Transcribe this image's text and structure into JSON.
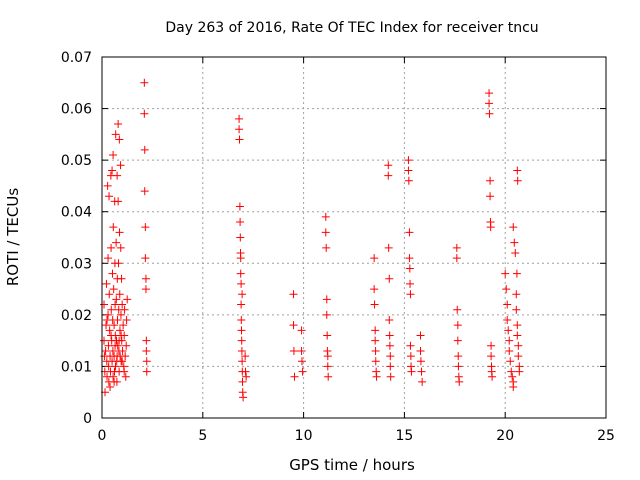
{
  "chart_data": {
    "type": "scatter",
    "title": "Day 263 of 2016, Rate Of TEC Index for receiver tncu",
    "xlabel": "GPS time / hours",
    "ylabel": "ROTI / TECUs",
    "xlim": [
      0,
      25
    ],
    "ylim": [
      0,
      0.07
    ],
    "xticks": [
      "0",
      "5",
      "10",
      "15",
      "20",
      "25"
    ],
    "yticks": [
      "0",
      "0.01",
      "0.02",
      "0.03",
      "0.04",
      "0.05",
      "0.06",
      "0.07"
    ],
    "grid": true,
    "marker": "+",
    "color": "#ff0000",
    "series": [
      {
        "name": "ROTI",
        "points": [
          [
            0.1,
            0.022
          ],
          [
            0.1,
            0.015
          ],
          [
            0.12,
            0.012
          ],
          [
            0.14,
            0.009
          ],
          [
            0.15,
            0.005
          ],
          [
            0.18,
            0.013
          ],
          [
            0.2,
            0.018
          ],
          [
            0.22,
            0.026
          ],
          [
            0.24,
            0.011
          ],
          [
            0.25,
            0.008
          ],
          [
            0.28,
            0.045
          ],
          [
            0.3,
            0.031
          ],
          [
            0.3,
            0.02
          ],
          [
            0.32,
            0.014
          ],
          [
            0.33,
            0.01
          ],
          [
            0.34,
            0.007
          ],
          [
            0.36,
            0.024
          ],
          [
            0.38,
            0.017
          ],
          [
            0.4,
            0.012
          ],
          [
            0.42,
            0.009
          ],
          [
            0.44,
            0.047
          ],
          [
            0.45,
            0.033
          ],
          [
            0.46,
            0.021
          ],
          [
            0.48,
            0.015
          ],
          [
            0.5,
            0.011
          ],
          [
            0.5,
            0.048
          ],
          [
            0.52,
            0.028
          ],
          [
            0.53,
            0.019
          ],
          [
            0.54,
            0.013
          ],
          [
            0.55,
            0.008
          ],
          [
            0.56,
            0.037
          ],
          [
            0.58,
            0.025
          ],
          [
            0.6,
            0.018
          ],
          [
            0.6,
            0.012
          ],
          [
            0.62,
            0.009
          ],
          [
            0.63,
            0.042
          ],
          [
            0.64,
            0.03
          ],
          [
            0.65,
            0.022
          ],
          [
            0.66,
            0.016
          ],
          [
            0.67,
            0.01
          ],
          [
            0.68,
            0.055
          ],
          [
            0.7,
            0.034
          ],
          [
            0.71,
            0.023
          ],
          [
            0.72,
            0.015
          ],
          [
            0.73,
            0.011
          ],
          [
            0.74,
            0.007
          ],
          [
            0.75,
            0.047
          ],
          [
            0.76,
            0.027
          ],
          [
            0.77,
            0.019
          ],
          [
            0.78,
            0.014
          ],
          [
            0.8,
            0.057
          ],
          [
            0.8,
            0.042
          ],
          [
            0.82,
            0.03
          ],
          [
            0.83,
            0.021
          ],
          [
            0.84,
            0.013
          ],
          [
            0.85,
            0.009
          ],
          [
            0.86,
            0.054
          ],
          [
            0.87,
            0.036
          ],
          [
            0.88,
            0.024
          ],
          [
            0.89,
            0.017
          ],
          [
            0.9,
            0.012
          ],
          [
            0.92,
            0.049
          ],
          [
            0.93,
            0.033
          ],
          [
            0.94,
            0.02
          ],
          [
            0.95,
            0.011
          ],
          [
            0.97,
            0.027
          ],
          [
            0.98,
            0.015
          ],
          [
            1.0,
            0.022
          ],
          [
            1.02,
            0.013
          ],
          [
            1.05,
            0.018
          ],
          [
            1.08,
            0.01
          ],
          [
            1.1,
            0.016
          ],
          [
            1.12,
            0.021
          ],
          [
            1.15,
            0.012
          ],
          [
            1.18,
            0.008
          ],
          [
            1.2,
            0.014
          ],
          [
            1.22,
            0.019
          ],
          [
            1.25,
            0.023
          ],
          [
            0.35,
            0.043
          ],
          [
            0.55,
            0.051
          ],
          [
            0.45,
            0.016
          ],
          [
            0.65,
            0.014
          ],
          [
            0.85,
            0.015
          ],
          [
            1.0,
            0.011
          ],
          [
            0.25,
            0.019
          ],
          [
            0.75,
            0.012
          ],
          [
            0.95,
            0.016
          ],
          [
            1.1,
            0.009
          ],
          [
            0.6,
            0.007
          ],
          [
            0.4,
            0.006
          ],
          [
            2.1,
            0.065
          ],
          [
            2.1,
            0.059
          ],
          [
            2.12,
            0.052
          ],
          [
            2.12,
            0.044
          ],
          [
            2.15,
            0.037
          ],
          [
            2.15,
            0.031
          ],
          [
            2.18,
            0.027
          ],
          [
            2.18,
            0.025
          ],
          [
            2.2,
            0.015
          ],
          [
            2.2,
            0.013
          ],
          [
            2.22,
            0.011
          ],
          [
            2.22,
            0.009
          ],
          [
            6.8,
            0.058
          ],
          [
            6.8,
            0.056
          ],
          [
            6.82,
            0.054
          ],
          [
            6.84,
            0.041
          ],
          [
            6.85,
            0.038
          ],
          [
            6.86,
            0.035
          ],
          [
            6.87,
            0.032
          ],
          [
            6.88,
            0.028
          ],
          [
            6.9,
            0.026
          ],
          [
            6.9,
            0.022
          ],
          [
            6.91,
            0.019
          ],
          [
            6.92,
            0.017
          ],
          [
            6.93,
            0.015
          ],
          [
            6.94,
            0.013
          ],
          [
            6.95,
            0.011
          ],
          [
            6.96,
            0.009
          ],
          [
            6.97,
            0.007
          ],
          [
            6.98,
            0.005
          ],
          [
            7.0,
            0.004
          ],
          [
            7.1,
            0.012
          ],
          [
            7.12,
            0.009
          ],
          [
            7.15,
            0.008
          ],
          [
            6.95,
            0.024
          ],
          [
            6.88,
            0.031
          ],
          [
            9.5,
            0.024
          ],
          [
            9.5,
            0.018
          ],
          [
            9.52,
            0.013
          ],
          [
            9.55,
            0.008
          ],
          [
            9.9,
            0.017
          ],
          [
            9.9,
            0.013
          ],
          [
            9.92,
            0.011
          ],
          [
            9.95,
            0.009
          ],
          [
            11.1,
            0.039
          ],
          [
            11.1,
            0.036
          ],
          [
            11.12,
            0.033
          ],
          [
            11.15,
            0.023
          ],
          [
            11.15,
            0.02
          ],
          [
            11.17,
            0.016
          ],
          [
            11.18,
            0.013
          ],
          [
            11.2,
            0.012
          ],
          [
            11.2,
            0.01
          ],
          [
            11.22,
            0.008
          ],
          [
            13.5,
            0.031
          ],
          [
            13.5,
            0.025
          ],
          [
            13.52,
            0.022
          ],
          [
            13.55,
            0.017
          ],
          [
            13.55,
            0.015
          ],
          [
            13.57,
            0.013
          ],
          [
            13.58,
            0.011
          ],
          [
            13.6,
            0.009
          ],
          [
            13.62,
            0.008
          ],
          [
            14.2,
            0.049
          ],
          [
            14.2,
            0.047
          ],
          [
            14.22,
            0.033
          ],
          [
            14.25,
            0.027
          ],
          [
            14.25,
            0.019
          ],
          [
            14.27,
            0.016
          ],
          [
            14.28,
            0.014
          ],
          [
            14.3,
            0.012
          ],
          [
            14.3,
            0.01
          ],
          [
            14.32,
            0.008
          ],
          [
            15.2,
            0.05
          ],
          [
            15.2,
            0.048
          ],
          [
            15.22,
            0.046
          ],
          [
            15.25,
            0.036
          ],
          [
            15.25,
            0.031
          ],
          [
            15.27,
            0.029
          ],
          [
            15.28,
            0.026
          ],
          [
            15.3,
            0.024
          ],
          [
            15.3,
            0.014
          ],
          [
            15.32,
            0.012
          ],
          [
            15.33,
            0.01
          ],
          [
            15.35,
            0.009
          ],
          [
            15.8,
            0.016
          ],
          [
            15.8,
            0.013
          ],
          [
            15.82,
            0.011
          ],
          [
            15.85,
            0.009
          ],
          [
            15.88,
            0.007
          ],
          [
            17.6,
            0.033
          ],
          [
            17.6,
            0.031
          ],
          [
            17.62,
            0.021
          ],
          [
            17.65,
            0.018
          ],
          [
            17.65,
            0.015
          ],
          [
            17.67,
            0.012
          ],
          [
            17.68,
            0.01
          ],
          [
            17.7,
            0.008
          ],
          [
            17.72,
            0.007
          ],
          [
            19.2,
            0.063
          ],
          [
            19.2,
            0.061
          ],
          [
            19.22,
            0.059
          ],
          [
            19.25,
            0.046
          ],
          [
            19.25,
            0.043
          ],
          [
            19.27,
            0.038
          ],
          [
            19.28,
            0.037
          ],
          [
            19.3,
            0.014
          ],
          [
            19.3,
            0.012
          ],
          [
            19.32,
            0.01
          ],
          [
            19.33,
            0.009
          ],
          [
            19.35,
            0.008
          ],
          [
            20.0,
            0.028
          ],
          [
            20.05,
            0.025
          ],
          [
            20.1,
            0.022
          ],
          [
            20.1,
            0.019
          ],
          [
            20.15,
            0.017
          ],
          [
            20.2,
            0.015
          ],
          [
            20.2,
            0.013
          ],
          [
            20.25,
            0.011
          ],
          [
            20.3,
            0.009
          ],
          [
            20.35,
            0.008
          ],
          [
            20.4,
            0.007
          ],
          [
            20.4,
            0.006
          ],
          [
            20.4,
            0.037
          ],
          [
            20.45,
            0.034
          ],
          [
            20.5,
            0.032
          ],
          [
            20.55,
            0.024
          ],
          [
            20.55,
            0.021
          ],
          [
            20.6,
            0.018
          ],
          [
            20.6,
            0.016
          ],
          [
            20.65,
            0.014
          ],
          [
            20.65,
            0.012
          ],
          [
            20.7,
            0.01
          ],
          [
            20.7,
            0.009
          ],
          [
            20.6,
            0.048
          ],
          [
            20.62,
            0.046
          ],
          [
            20.58,
            0.028
          ]
        ]
      }
    ]
  }
}
